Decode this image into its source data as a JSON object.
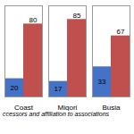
{
  "chart_data": {
    "type": "bar",
    "categories": [
      "Coast",
      "Migori",
      "Busia"
    ],
    "series": [
      {
        "color": "#4472C4",
        "values": [
          20,
          17,
          33
        ]
      },
      {
        "color": "#C0504D",
        "values": [
          80,
          85,
          67
        ]
      }
    ],
    "ylim": [
      0,
      100
    ],
    "yticks": [],
    "tick_labels": "x",
    "data_labels": true,
    "caption": "ccessors and affiliation to associations"
  }
}
